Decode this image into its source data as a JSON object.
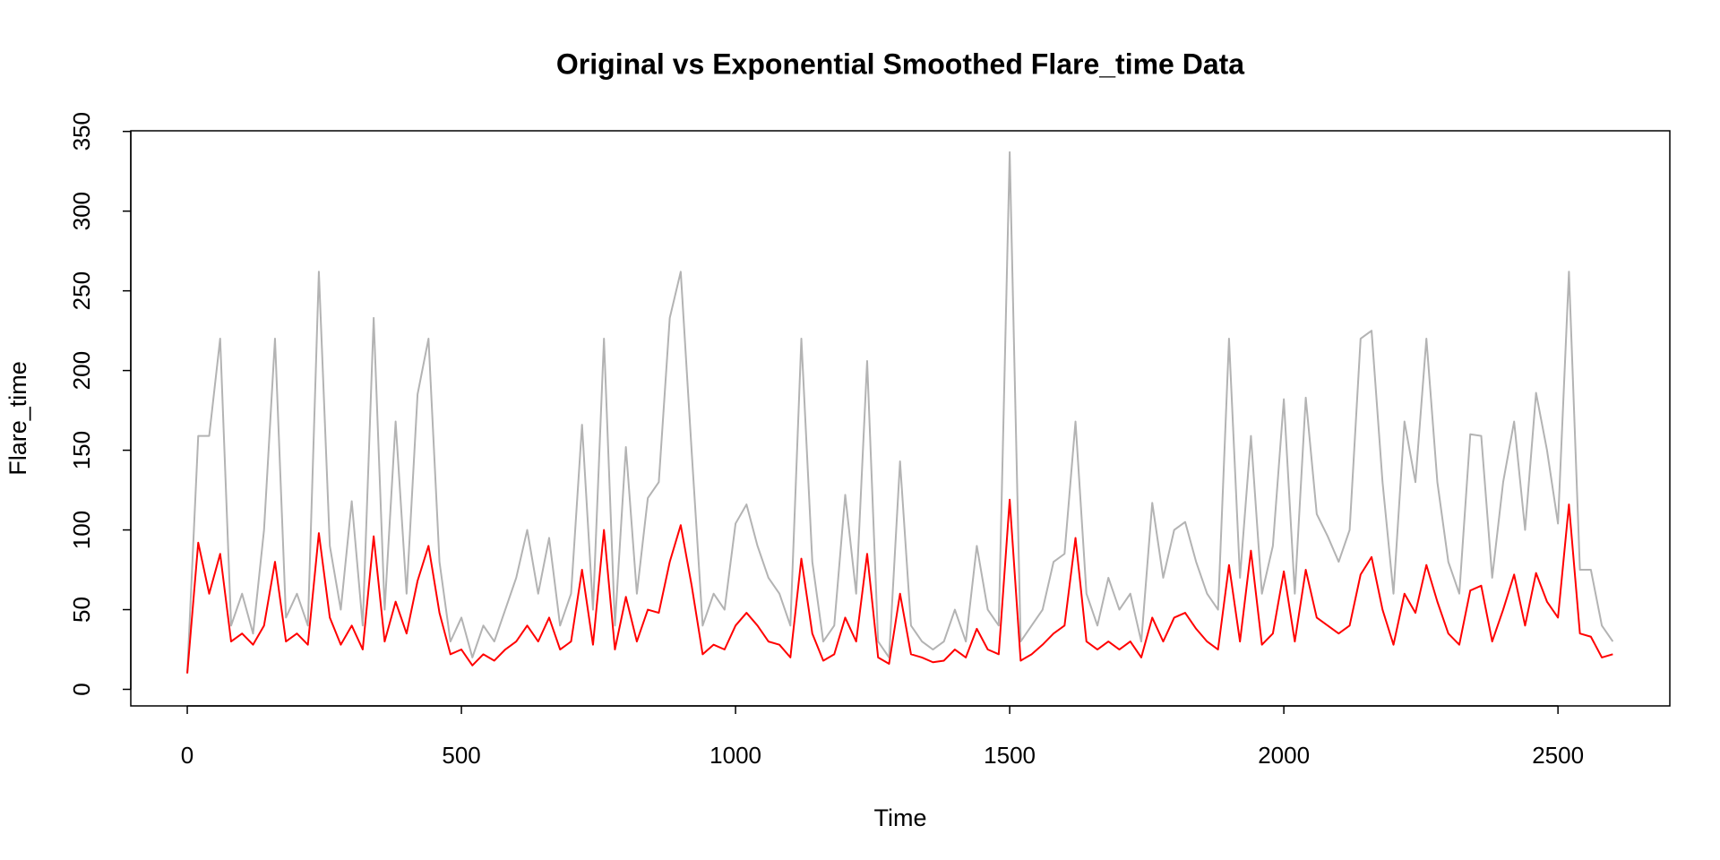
{
  "chart_data": {
    "type": "line",
    "title": "Original vs Exponential Smoothed Flare_time Data",
    "x_label": "Time",
    "y_label": "Flare_time",
    "x": [
      0,
      20,
      40,
      60,
      80,
      100,
      120,
      140,
      160,
      180,
      200,
      220,
      240,
      260,
      280,
      300,
      320,
      340,
      360,
      380,
      400,
      420,
      440,
      460,
      480,
      500,
      520,
      540,
      560,
      580,
      600,
      620,
      640,
      660,
      680,
      700,
      720,
      740,
      760,
      780,
      800,
      820,
      840,
      860,
      880,
      900,
      920,
      940,
      960,
      980,
      1000,
      1020,
      1040,
      1060,
      1080,
      1100,
      1120,
      1140,
      1160,
      1180,
      1200,
      1220,
      1240,
      1260,
      1280,
      1300,
      1320,
      1340,
      1360,
      1380,
      1400,
      1420,
      1440,
      1460,
      1480,
      1500,
      1520,
      1540,
      1560,
      1580,
      1600,
      1620,
      1640,
      1660,
      1680,
      1700,
      1720,
      1740,
      1760,
      1780,
      1800,
      1820,
      1840,
      1860,
      1880,
      1900,
      1920,
      1940,
      1960,
      1980,
      2000,
      2020,
      2040,
      2060,
      2080,
      2100,
      2120,
      2140,
      2160,
      2180,
      2200,
      2220,
      2240,
      2260,
      2280,
      2300,
      2320,
      2340,
      2360,
      2380,
      2400,
      2420,
      2440,
      2460,
      2480,
      2500,
      2520,
      2540,
      2560,
      2580,
      2600
    ],
    "series": [
      {
        "color": "#b3b3b3",
        "values": [
          10,
          159,
          159,
          220,
          40,
          60,
          35,
          100,
          220,
          45,
          60,
          40,
          262,
          90,
          50,
          118,
          40,
          233,
          50,
          168,
          60,
          185,
          220,
          80,
          30,
          45,
          20,
          40,
          30,
          50,
          70,
          100,
          60,
          95,
          40,
          60,
          166,
          50,
          220,
          40,
          152,
          60,
          120,
          130,
          233,
          262,
          149,
          40,
          60,
          50,
          104,
          116,
          90,
          70,
          60,
          40,
          220,
          80,
          30,
          40,
          122,
          60,
          206,
          30,
          20,
          143,
          40,
          30,
          25,
          30,
          50,
          30,
          90,
          50,
          40,
          337,
          30,
          40,
          50,
          80,
          85,
          168,
          60,
          40,
          70,
          50,
          60,
          30,
          117,
          70,
          100,
          105,
          80,
          60,
          50,
          220,
          70,
          159,
          60,
          90,
          182,
          60,
          183,
          110,
          96,
          80,
          100,
          220,
          225,
          130,
          60,
          168,
          130,
          220,
          130,
          80,
          60,
          160,
          159,
          70,
          130,
          168,
          100,
          186,
          150,
          104,
          262,
          75,
          75,
          40,
          30
        ]
      },
      {
        "color": "#ff0000",
        "values": [
          10,
          92,
          60,
          85,
          30,
          35,
          28,
          40,
          80,
          30,
          35,
          28,
          98,
          45,
          28,
          40,
          25,
          96,
          30,
          55,
          35,
          68,
          90,
          48,
          22,
          25,
          15,
          22,
          18,
          25,
          30,
          40,
          30,
          45,
          25,
          30,
          75,
          28,
          100,
          25,
          58,
          30,
          50,
          48,
          80,
          103,
          65,
          22,
          28,
          25,
          40,
          48,
          40,
          30,
          28,
          20,
          82,
          35,
          18,
          22,
          45,
          30,
          85,
          20,
          16,
          60,
          22,
          20,
          17,
          18,
          25,
          20,
          38,
          25,
          22,
          119,
          18,
          22,
          28,
          35,
          40,
          95,
          30,
          25,
          30,
          25,
          30,
          20,
          45,
          30,
          45,
          48,
          38,
          30,
          25,
          78,
          30,
          87,
          28,
          35,
          74,
          30,
          75,
          45,
          40,
          35,
          40,
          72,
          83,
          50,
          28,
          60,
          48,
          78,
          55,
          35,
          28,
          62,
          65,
          30,
          50,
          72,
          40,
          73,
          55,
          45,
          116,
          35,
          33,
          20,
          22
        ]
      }
    ],
    "xlim": [
      -103,
      2704
    ],
    "ylim": [
      -10.4,
      350.4
    ],
    "xticks": [
      0,
      500,
      1000,
      1500,
      2000,
      2500
    ],
    "yticks": [
      0,
      50,
      100,
      150,
      200,
      250,
      300,
      350
    ]
  }
}
